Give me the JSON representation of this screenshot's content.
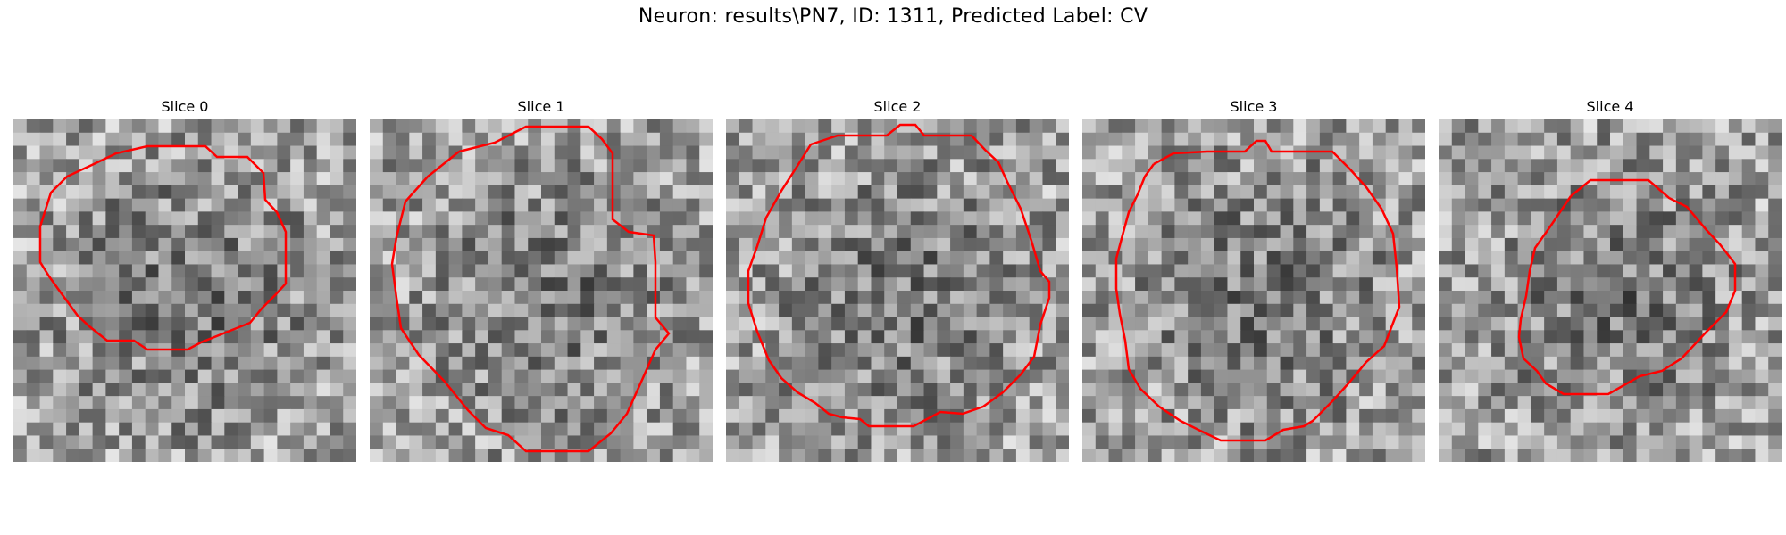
{
  "suptitle": "Neuron: results\\PN7, ID: 1311, Predicted Label: CV",
  "panels": [
    {
      "title": "Slice 0",
      "contour_color": "#ff0000"
    },
    {
      "title": "Slice 1",
      "contour_color": "#ff0000"
    },
    {
      "title": "Slice 2",
      "contour_color": "#ff0000"
    },
    {
      "title": "Slice 3",
      "contour_color": "#ff0000"
    },
    {
      "title": "Slice 4",
      "contour_color": "#ff0000"
    }
  ]
}
